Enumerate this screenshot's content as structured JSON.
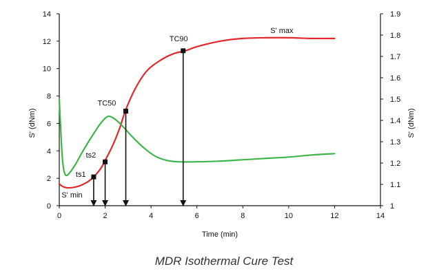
{
  "caption": "MDR Isothermal Cure Test",
  "chart_data": {
    "type": "line",
    "title": "",
    "xlabel": "Time (min)",
    "ylabel_left": "S' (dNm)",
    "ylabel_right": "S' (dNm)",
    "xlim": [
      0,
      14
    ],
    "ylim_left": [
      0,
      14
    ],
    "ylim_right": [
      1.0,
      1.9
    ],
    "x_ticks": [
      0,
      2,
      4,
      6,
      8,
      10,
      12,
      14
    ],
    "y_ticks_left": [
      0,
      2,
      4,
      6,
      8,
      10,
      12,
      14
    ],
    "y_ticks_right": [
      1,
      1.1,
      1.2,
      1.3,
      1.4,
      1.5,
      1.6,
      1.7,
      1.8,
      1.9
    ],
    "grid": false,
    "series": [
      {
        "color": "#e3262a",
        "axis": "left",
        "points": [
          [
            0,
            1.6
          ],
          [
            0.15,
            1.4
          ],
          [
            0.4,
            1.3
          ],
          [
            0.8,
            1.4
          ],
          [
            1.2,
            1.7
          ],
          [
            1.5,
            2.1
          ],
          [
            1.8,
            2.7
          ],
          [
            2.0,
            3.3
          ],
          [
            2.3,
            4.3
          ],
          [
            2.6,
            5.5
          ],
          [
            2.9,
            7.0
          ],
          [
            3.3,
            8.5
          ],
          [
            3.8,
            9.8
          ],
          [
            4.4,
            10.6
          ],
          [
            5.0,
            11.1
          ],
          [
            5.5,
            11.3
          ],
          [
            6.0,
            11.6
          ],
          [
            7.0,
            12.0
          ],
          [
            8.0,
            12.2
          ],
          [
            9.0,
            12.25
          ],
          [
            10.0,
            12.25
          ],
          [
            11.0,
            12.2
          ],
          [
            12.0,
            12.2
          ]
        ]
      },
      {
        "color": "#3db54a",
        "axis": "left",
        "points": [
          [
            0,
            7.8
          ],
          [
            0.08,
            5.0
          ],
          [
            0.15,
            3.2
          ],
          [
            0.25,
            2.3
          ],
          [
            0.4,
            2.3
          ],
          [
            0.7,
            3.0
          ],
          [
            1.0,
            3.9
          ],
          [
            1.4,
            5.0
          ],
          [
            1.8,
            6.0
          ],
          [
            2.1,
            6.5
          ],
          [
            2.35,
            6.4
          ],
          [
            2.7,
            5.9
          ],
          [
            3.2,
            5.0
          ],
          [
            3.7,
            4.2
          ],
          [
            4.2,
            3.6
          ],
          [
            4.7,
            3.3
          ],
          [
            5.2,
            3.2
          ],
          [
            6.0,
            3.2
          ],
          [
            7.0,
            3.25
          ],
          [
            8.0,
            3.35
          ],
          [
            9.0,
            3.45
          ],
          [
            10.0,
            3.55
          ],
          [
            11.0,
            3.7
          ],
          [
            12.0,
            3.8
          ]
        ]
      }
    ],
    "markers": [
      {
        "label": "ts1",
        "x": 1.5,
        "y": 2.1
      },
      {
        "label": "ts2",
        "x": 2.0,
        "y": 3.2
      },
      {
        "label": "TC50",
        "x": 2.9,
        "y": 6.9
      },
      {
        "label": "TC90",
        "x": 5.4,
        "y": 11.3
      }
    ],
    "annotations": [
      {
        "text": "S' min",
        "x": 0.1,
        "y": 0.6
      },
      {
        "text": "S' max",
        "x": 9.2,
        "y": 12.6
      }
    ]
  }
}
